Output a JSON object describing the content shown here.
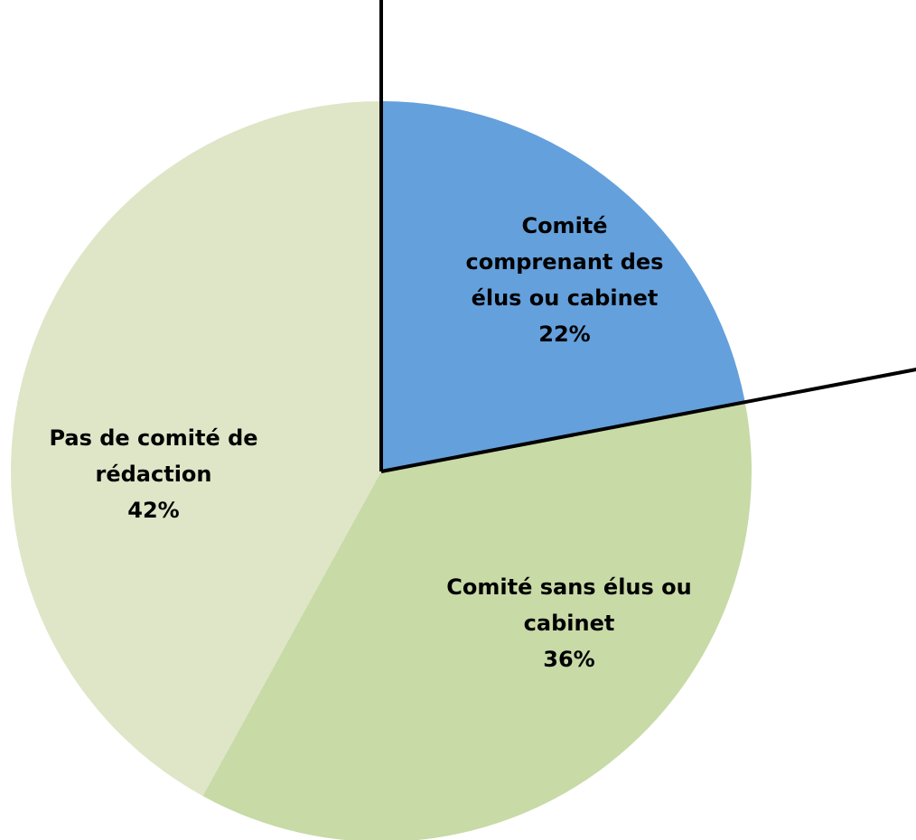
{
  "chart_data": {
    "type": "pie",
    "categories": [
      "Comité comprenant des élus ou cabinet",
      "Comité sans élus ou cabinet",
      "Pas de comité de rédaction"
    ],
    "values": [
      22,
      36,
      42
    ],
    "value_labels": [
      "22%",
      "36%",
      "42%"
    ],
    "colors": [
      "#64a0dc",
      "#c8daa6",
      "#dee6c7"
    ]
  }
}
